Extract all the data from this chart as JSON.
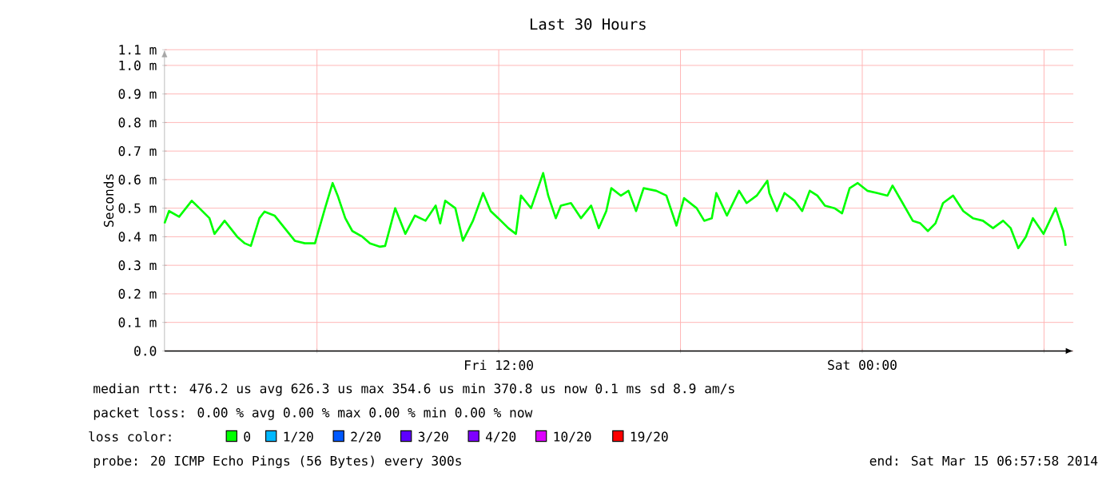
{
  "chart_data": {
    "type": "line",
    "title": "Last 30 Hours",
    "ylabel": "Seconds",
    "xlim": [
      "2014-03-14T00:58",
      "2014-03-15T06:58"
    ],
    "xticks": [
      {
        "value": "2014-03-14T06:00",
        "label": null
      },
      {
        "value": "2014-03-14T12:00",
        "label": "Fri 12:00"
      },
      {
        "value": "2014-03-14T18:00",
        "label": null
      },
      {
        "value": "2014-03-15T00:00",
        "label": "Sat 00:00"
      },
      {
        "value": "2014-03-15T06:00",
        "label": null
      }
    ],
    "ylim": [
      0,
      1.055
    ],
    "yticks": [
      {
        "value": 0,
        "label": "0.0"
      },
      {
        "value": 0.1,
        "label": "0.1 m"
      },
      {
        "value": 0.2,
        "label": "0.2 m"
      },
      {
        "value": 0.3,
        "label": "0.3 m"
      },
      {
        "value": 0.4,
        "label": "0.4 m"
      },
      {
        "value": 0.5,
        "label": "0.5 m"
      },
      {
        "value": 0.6,
        "label": "0.6 m"
      },
      {
        "value": 0.7,
        "label": "0.7 m"
      },
      {
        "value": 0.8,
        "label": "0.8 m"
      },
      {
        "value": 0.9,
        "label": "0.9 m"
      },
      {
        "value": 1.0,
        "label": "1.0 m"
      },
      {
        "value": 1.055,
        "label": "1.1 m"
      }
    ],
    "grid": true,
    "legend": "bottom left",
    "legend_title": "loss color:",
    "series": [
      {
        "name": "0",
        "color": "#00ff00",
        "x": [
          "2014-03-14T00:58",
          "2014-03-14T01:07",
          "2014-03-14T01:27",
          "2014-03-14T01:52",
          "2014-03-14T02:07",
          "2014-03-14T02:27",
          "2014-03-14T02:37",
          "2014-03-14T02:57",
          "2014-03-14T03:22",
          "2014-03-14T03:37",
          "2014-03-14T03:49",
          "2014-03-14T04:06",
          "2014-03-14T04:16",
          "2014-03-14T04:36",
          "2014-03-14T04:56",
          "2014-03-14T05:16",
          "2014-03-14T05:36",
          "2014-03-14T05:56",
          "2014-03-14T06:16",
          "2014-03-14T06:31",
          "2014-03-14T06:41",
          "2014-03-14T06:56",
          "2014-03-14T07:10",
          "2014-03-14T07:30",
          "2014-03-14T07:45",
          "2014-03-14T08:05",
          "2014-03-14T08:15",
          "2014-03-14T08:35",
          "2014-03-14T08:55",
          "2014-03-14T09:14",
          "2014-03-14T09:35",
          "2014-03-14T09:55",
          "2014-03-14T10:04",
          "2014-03-14T10:14",
          "2014-03-14T10:34",
          "2014-03-14T10:49",
          "2014-03-14T11:09",
          "2014-03-14T11:29",
          "2014-03-14T11:44",
          "2014-03-14T11:59",
          "2014-03-14T12:19",
          "2014-03-14T12:34",
          "2014-03-14T12:44",
          "2014-03-14T13:04",
          "2014-03-14T13:28",
          "2014-03-14T13:38",
          "2014-03-14T13:53",
          "2014-03-14T14:03",
          "2014-03-14T14:23",
          "2014-03-14T14:43",
          "2014-03-14T15:03",
          "2014-03-14T15:18",
          "2014-03-14T15:33",
          "2014-03-14T15:43",
          "2014-03-14T16:02",
          "2014-03-14T16:17",
          "2014-03-14T16:32",
          "2014-03-14T16:47",
          "2014-03-14T17:12",
          "2014-03-14T17:32",
          "2014-03-14T17:52",
          "2014-03-14T18:07",
          "2014-03-14T18:32",
          "2014-03-14T18:47",
          "2014-03-14T19:02",
          "2014-03-14T19:11",
          "2014-03-14T19:32",
          "2014-03-14T19:56",
          "2014-03-14T20:11",
          "2014-03-14T20:31",
          "2014-03-14T20:52",
          "2014-03-14T20:56",
          "2014-03-14T21:11",
          "2014-03-14T21:26",
          "2014-03-14T21:46",
          "2014-03-14T22:01",
          "2014-03-14T22:16",
          "2014-03-14T22:31",
          "2014-03-14T22:46",
          "2014-03-14T23:05",
          "2014-03-14T23:20",
          "2014-03-14T23:35",
          "2014-03-14T23:51",
          "2014-03-15T00:10",
          "2014-03-15T00:30",
          "2014-03-15T00:50",
          "2014-03-15T01:00",
          "2014-03-15T01:20",
          "2014-03-15T01:40",
          "2014-03-15T01:55",
          "2014-03-15T02:10",
          "2014-03-15T02:25",
          "2014-03-15T02:40",
          "2014-03-15T03:00",
          "2014-03-15T03:20",
          "2014-03-15T03:39",
          "2014-03-15T03:59",
          "2014-03-15T04:19",
          "2014-03-15T04:39",
          "2014-03-15T04:54",
          "2014-03-15T05:09",
          "2014-03-15T05:24",
          "2014-03-15T05:38",
          "2014-03-15T05:59",
          "2014-03-15T06:23",
          "2014-03-15T06:38",
          "2014-03-15T06:43"
        ],
        "values": [
          0.447,
          0.49,
          0.47,
          0.526,
          0.5,
          0.465,
          0.41,
          0.456,
          0.4,
          0.377,
          0.368,
          0.465,
          0.488,
          0.474,
          0.43,
          0.386,
          0.377,
          0.377,
          0.5,
          0.588,
          0.544,
          0.465,
          0.42,
          0.4,
          0.377,
          0.365,
          0.368,
          0.5,
          0.41,
          0.474,
          0.456,
          0.509,
          0.447,
          0.526,
          0.5,
          0.386,
          0.456,
          0.553,
          0.49,
          0.465,
          0.43,
          0.41,
          0.544,
          0.5,
          0.623,
          0.544,
          0.465,
          0.509,
          0.518,
          0.465,
          0.509,
          0.43,
          0.49,
          0.57,
          0.544,
          0.561,
          0.49,
          0.57,
          0.561,
          0.544,
          0.439,
          0.535,
          0.5,
          0.456,
          0.465,
          0.553,
          0.474,
          0.561,
          0.518,
          0.544,
          0.596,
          0.553,
          0.49,
          0.553,
          0.526,
          0.49,
          0.561,
          0.544,
          0.509,
          0.5,
          0.482,
          0.57,
          0.588,
          0.561,
          0.553,
          0.544,
          0.579,
          0.518,
          0.456,
          0.447,
          0.42,
          0.447,
          0.518,
          0.544,
          0.49,
          0.465,
          0.456,
          0.43,
          0.456,
          0.43,
          0.36,
          0.4,
          0.465,
          0.41,
          0.5,
          0.42,
          0.368
        ]
      },
      {
        "name": "1/20",
        "color": "#00b8ff"
      },
      {
        "name": "2/20",
        "color": "#0059ff"
      },
      {
        "name": "3/20",
        "color": "#5e00ff"
      },
      {
        "name": "4/20",
        "color": "#7e00ff"
      },
      {
        "name": "10/20",
        "color": "#dd00ff"
      },
      {
        "name": "19/20",
        "color": "#ff0000"
      }
    ],
    "annotations": [
      "median rtt:  476.2 us avg  626.3 us max  354.6 us min  370.8 us now  0.1 ms sd  8.9   am/s",
      "packet loss: 0.00 % avg  0.00 % max  0.00 % min  0.00 % now",
      "probe:       20 ICMP Echo Pings (56 Bytes) every 300s",
      "end: Sat Mar 15 06:57:58 2014"
    ]
  }
}
